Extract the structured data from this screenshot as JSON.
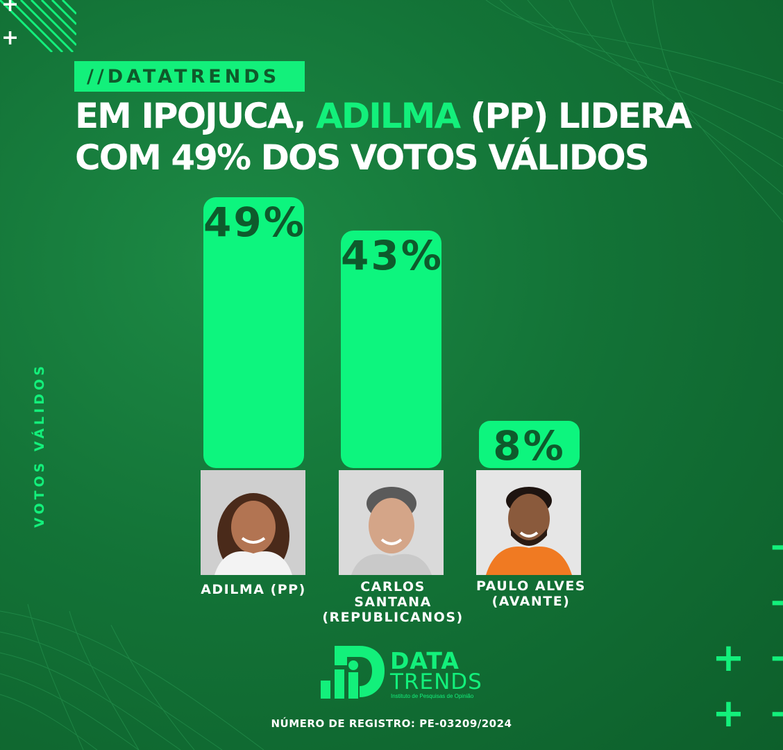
{
  "tag": "//DATATRENDS",
  "headline": {
    "part1": "EM IPOJUCA, ",
    "highlight": "ADILMA",
    "part2": " (PP) LIDERA",
    "line2": "COM 49% DOS VOTOS VÁLIDOS"
  },
  "colors": {
    "accent": "#13f07b",
    "background": "#137337",
    "bar": "#0df57e",
    "bar_text": "#0e5a2c"
  },
  "chart_data": {
    "type": "bar",
    "categories": [
      "ADILMA (PP)",
      "CARLOS SANTANA (REPUBLICANOS)",
      "PAULO ALVES (AVANTE)"
    ],
    "values": [
      49,
      43,
      8
    ],
    "value_labels": [
      "49%",
      "43%",
      "8%"
    ],
    "ylabel": "VOTOS VÁLIDOS",
    "ylim": [
      0,
      49
    ],
    "grid": false,
    "legend": "none"
  },
  "candidates": [
    {
      "name_line1": "ADILMA (PP)",
      "name_line2": "",
      "name_line3": ""
    },
    {
      "name_line1": "CARLOS",
      "name_line2": "SANTANA",
      "name_line3": "(REPUBLICANOS)"
    },
    {
      "name_line1": "PAULO ALVES",
      "name_line2": "(AVANTE)",
      "name_line3": ""
    }
  ],
  "logo": {
    "line1": "DATA",
    "line2": "TRENDS",
    "subtitle": "Instituto de Pesquisas de Opinião"
  },
  "registro": "NÚMERO DE REGISTRO:  PE-03209/2024"
}
